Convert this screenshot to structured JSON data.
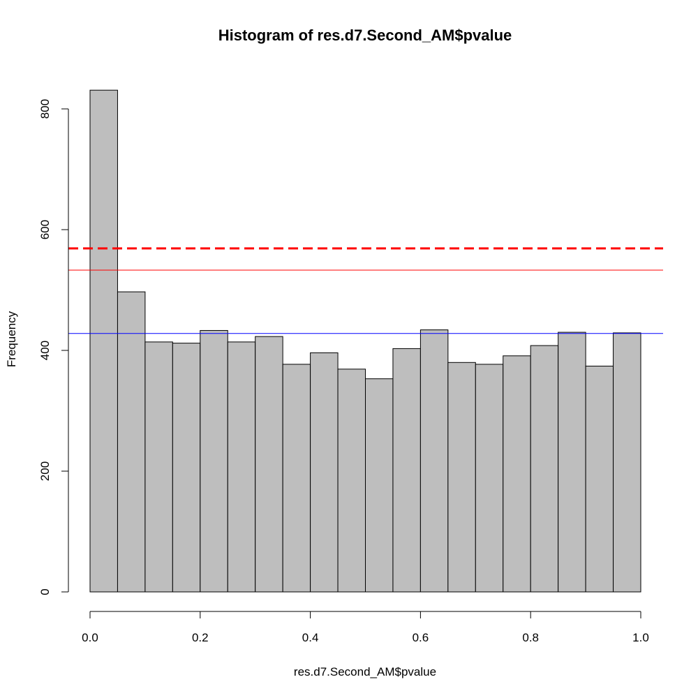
{
  "chart_data": {
    "type": "bar",
    "title": "Histogram of res.d7.Second_AM$pvalue",
    "xlabel": "res.d7.Second_AM$pvalue",
    "ylabel": "Frequency",
    "bin_width": 0.05,
    "x": [
      0.0,
      0.05,
      0.1,
      0.15,
      0.2,
      0.25,
      0.3,
      0.35,
      0.4,
      0.45,
      0.5,
      0.55,
      0.6,
      0.65,
      0.7,
      0.75,
      0.8,
      0.85,
      0.9,
      0.95
    ],
    "values": [
      831,
      497,
      414,
      412,
      433,
      414,
      423,
      377,
      396,
      369,
      353,
      403,
      434,
      380,
      377,
      391,
      408,
      430,
      374,
      429
    ],
    "xlim": [
      0,
      1
    ],
    "ylim": [
      0,
      800
    ],
    "x_ticks": [
      "0.0",
      "0.2",
      "0.4",
      "0.6",
      "0.8",
      "1.0"
    ],
    "y_ticks": [
      "0",
      "200",
      "400",
      "600",
      "800"
    ],
    "reference_lines": [
      {
        "y": 569,
        "color": "#ff0000",
        "style": "dashed",
        "width": 3
      },
      {
        "y": 533,
        "color": "#ff0000",
        "style": "solid",
        "width": 1
      },
      {
        "y": 428,
        "color": "#0000ff",
        "style": "solid",
        "width": 1
      }
    ],
    "grid": false,
    "bar_color": "#bebebe"
  }
}
